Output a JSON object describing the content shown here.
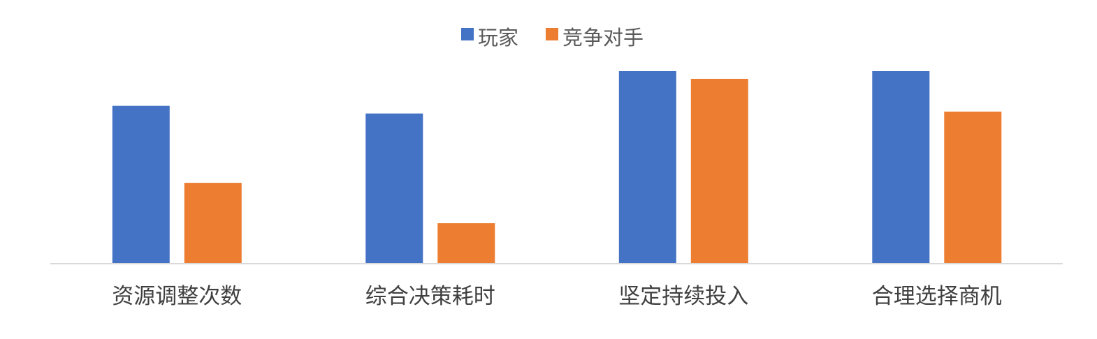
{
  "chart_data": {
    "type": "bar",
    "title": "",
    "xlabel": "",
    "ylabel": "",
    "categories": [
      "资源调整次数",
      "综合决策耗时",
      "坚定持续投入",
      "合理选择商机"
    ],
    "series": [
      {
        "name": "玩家",
        "values": [
          0.82,
          0.78,
          1.0,
          1.0
        ],
        "color": "#4472C4"
      },
      {
        "name": "竞争对手",
        "values": [
          0.42,
          0.21,
          0.96,
          0.79
        ],
        "color": "#ED7D31"
      }
    ],
    "ylim": [
      0,
      1
    ],
    "value_unit": "relative (no axis printed)",
    "grid": false,
    "legend_position": "top-center",
    "axis_color": "#D9D9D9"
  }
}
